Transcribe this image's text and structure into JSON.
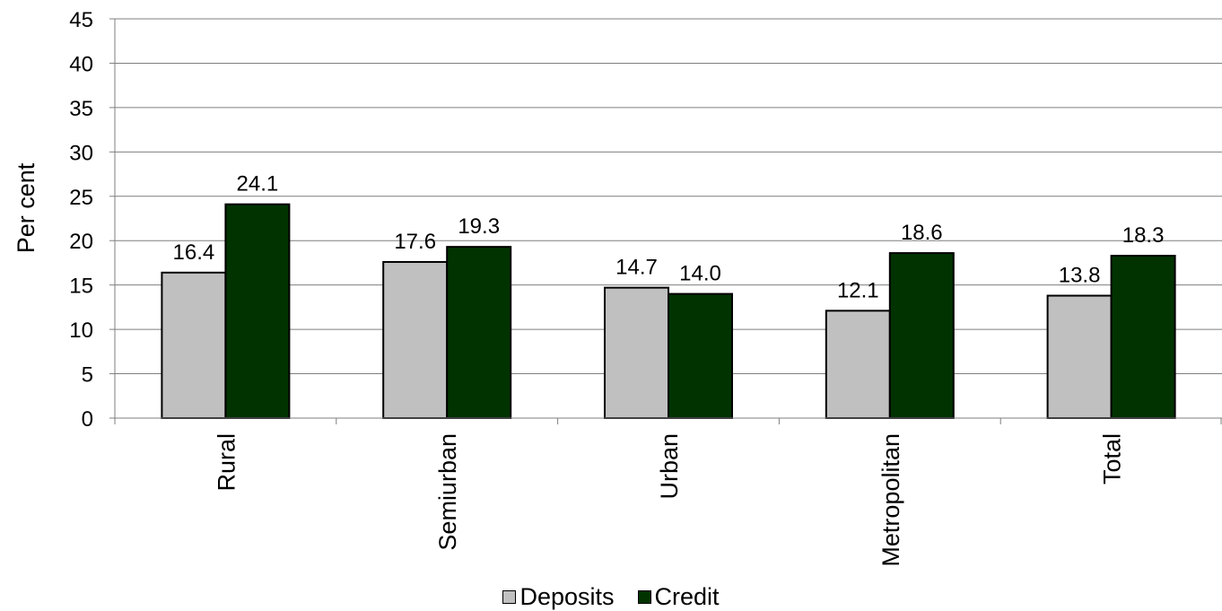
{
  "chart_data": {
    "type": "bar",
    "title": "",
    "xlabel": "",
    "ylabel": "Per cent",
    "ylim": [
      0,
      45
    ],
    "yticks": [
      0,
      5,
      10,
      15,
      20,
      25,
      30,
      35,
      40,
      45
    ],
    "grid": true,
    "legend_position": "bottom",
    "categories": [
      "Rural",
      "Semiurban",
      "Urban",
      "Metropolitan",
      "Total"
    ],
    "series": [
      {
        "name": "Deposits",
        "color": "#c0c0c0",
        "values": [
          16.4,
          17.6,
          14.7,
          12.1,
          13.8
        ],
        "labels": [
          "16.4",
          "17.6",
          "14.7",
          "12.1",
          "13.8"
        ]
      },
      {
        "name": "Credit",
        "color": "#003300",
        "values": [
          24.1,
          19.3,
          14.0,
          18.6,
          18.3
        ],
        "labels": [
          "24.1",
          "19.3",
          "14.0",
          "18.6",
          "18.3"
        ]
      }
    ]
  }
}
